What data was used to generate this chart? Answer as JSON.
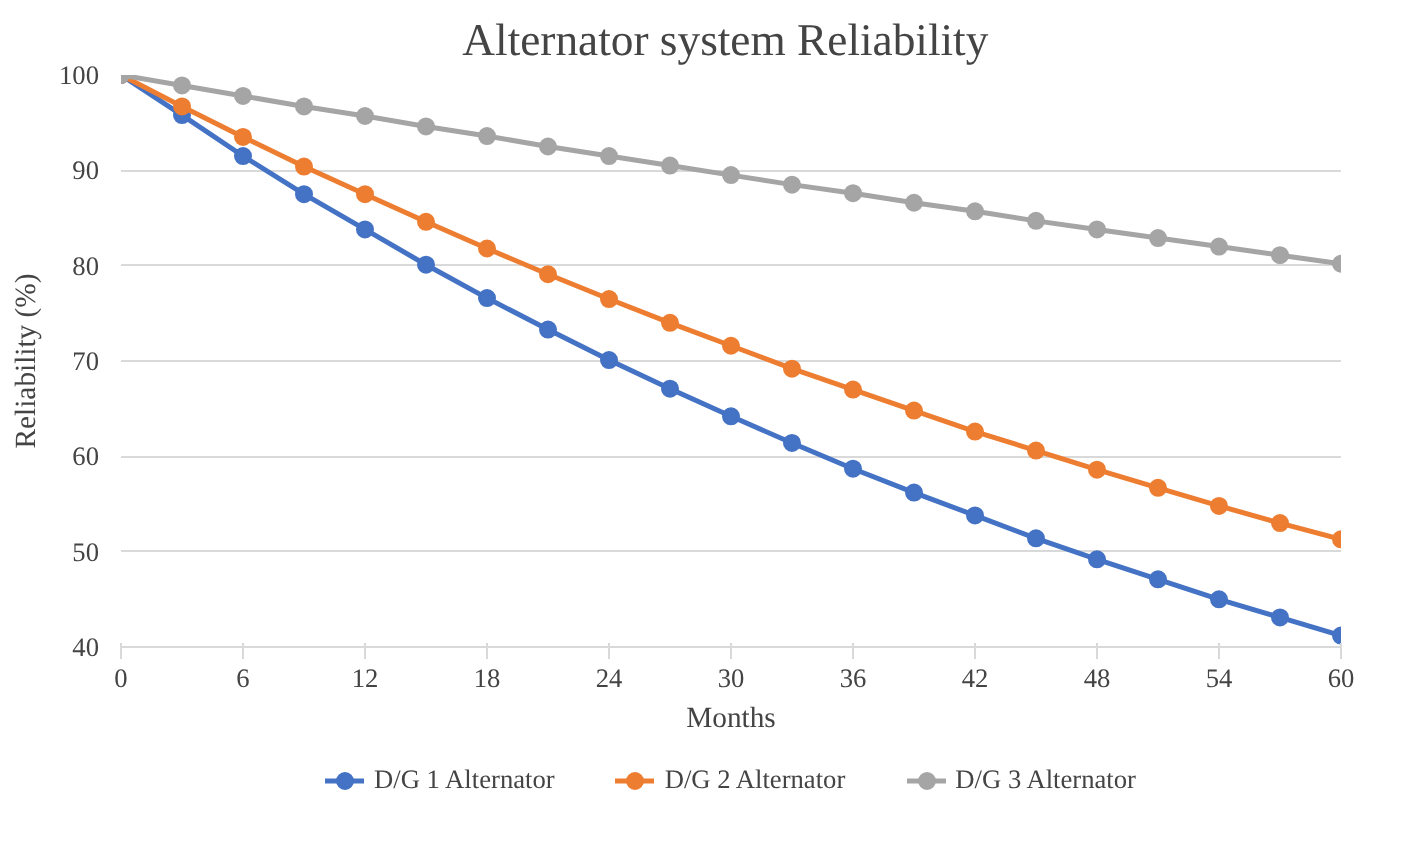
{
  "chart_data": {
    "type": "line",
    "title": "Alternator  system Reliability",
    "xlabel": "Months",
    "ylabel": "Reliability (%)",
    "x": [
      0,
      3,
      6,
      9,
      12,
      15,
      18,
      21,
      24,
      27,
      30,
      33,
      36,
      39,
      42,
      45,
      48,
      51,
      54,
      57,
      60
    ],
    "series": [
      {
        "name": "D/G 1 Alternator",
        "color": "#4472c4",
        "values": [
          100,
          95.8,
          91.5,
          87.5,
          83.8,
          80.1,
          76.6,
          73.3,
          70.1,
          67.1,
          64.2,
          61.4,
          58.7,
          56.2,
          53.8,
          51.4,
          49.2,
          47.1,
          45.0,
          43.1,
          41.2
        ]
      },
      {
        "name": "D/G 2 Alternator",
        "color": "#ed7d31",
        "values": [
          100,
          96.7,
          93.5,
          90.4,
          87.5,
          84.6,
          81.8,
          79.1,
          76.5,
          74.0,
          71.6,
          69.2,
          67.0,
          64.8,
          62.6,
          60.6,
          58.6,
          56.7,
          54.8,
          53.0,
          51.3
        ]
      },
      {
        "name": "D/G 3 Alternator",
        "color": "#a5a5a5",
        "values": [
          100,
          98.9,
          97.8,
          96.7,
          95.7,
          94.6,
          93.6,
          92.5,
          91.5,
          90.5,
          89.5,
          88.5,
          87.6,
          86.6,
          85.7,
          84.7,
          83.8,
          82.9,
          82.0,
          81.1,
          80.2
        ]
      }
    ],
    "xlim": [
      0,
      60
    ],
    "xticks": [
      0,
      6,
      12,
      18,
      24,
      30,
      36,
      42,
      48,
      54,
      60
    ],
    "ylim": [
      40,
      100
    ],
    "yticks": [
      40,
      50,
      60,
      70,
      80,
      90,
      100
    ],
    "grid": "y",
    "legend": "bottom",
    "marker": "circle",
    "line_style": "solid"
  }
}
